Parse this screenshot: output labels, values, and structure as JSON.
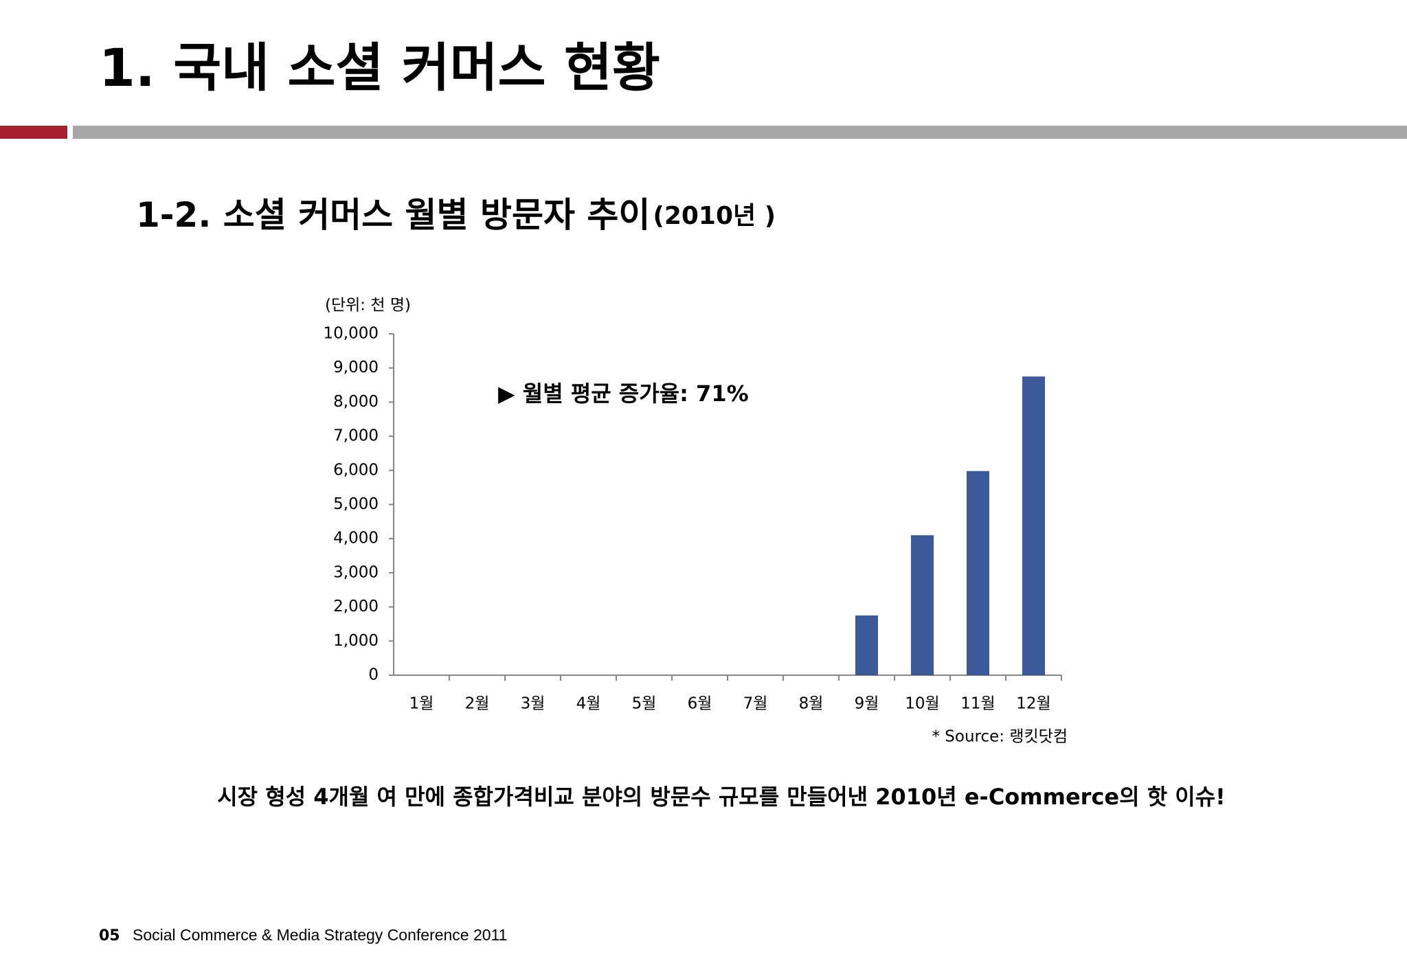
{
  "slide_title": "1. 국내 소셜 커머스 현황",
  "subtitle": "1-2. 소셜 커머스 월별 방문자 추이",
  "subtitle_year": "(2010년 )",
  "chart_data": {
    "type": "bar",
    "unit_label": "(단위: 천 명)",
    "annotation": "▶ 월별 평균 증가율: 71%",
    "source": "* Source: 랭킷닷컴",
    "categories": [
      "1월",
      "2월",
      "3월",
      "4월",
      "5월",
      "6월",
      "7월",
      "8월",
      "9월",
      "10월",
      "11월",
      "12월"
    ],
    "values": [
      0,
      0,
      0,
      0,
      0,
      0,
      0,
      0,
      1750,
      4100,
      5980,
      8750
    ],
    "color": "#3c5a9a",
    "ylim": [
      0,
      10000
    ],
    "yticks": [
      0,
      {
        "value": 1000,
        "label": "1,000"
      },
      {
        "value": 2000,
        "label": "2,000"
      },
      {
        "value": 3000,
        "label": "3,000"
      },
      {
        "value": 4000,
        "label": "4,000"
      },
      {
        "value": 5000,
        "label": "5,000"
      },
      {
        "value": 6000,
        "label": "6,000"
      },
      {
        "value": 7000,
        "label": "7,000"
      },
      {
        "value": 8000,
        "label": "8,000"
      },
      {
        "value": 9000,
        "label": "9,000"
      },
      {
        "value": 10000,
        "label": "10,000"
      }
    ],
    "grid": false
  },
  "conclusion": "시장 형성 4개월 여 만에 종합가격비교 분야의 방문수 규모를 만들어낸 2010년 e-Commerce의 핫 이슈!",
  "footer": {
    "page": "05",
    "text": "Social Commerce & Media Strategy Conference 2011"
  }
}
